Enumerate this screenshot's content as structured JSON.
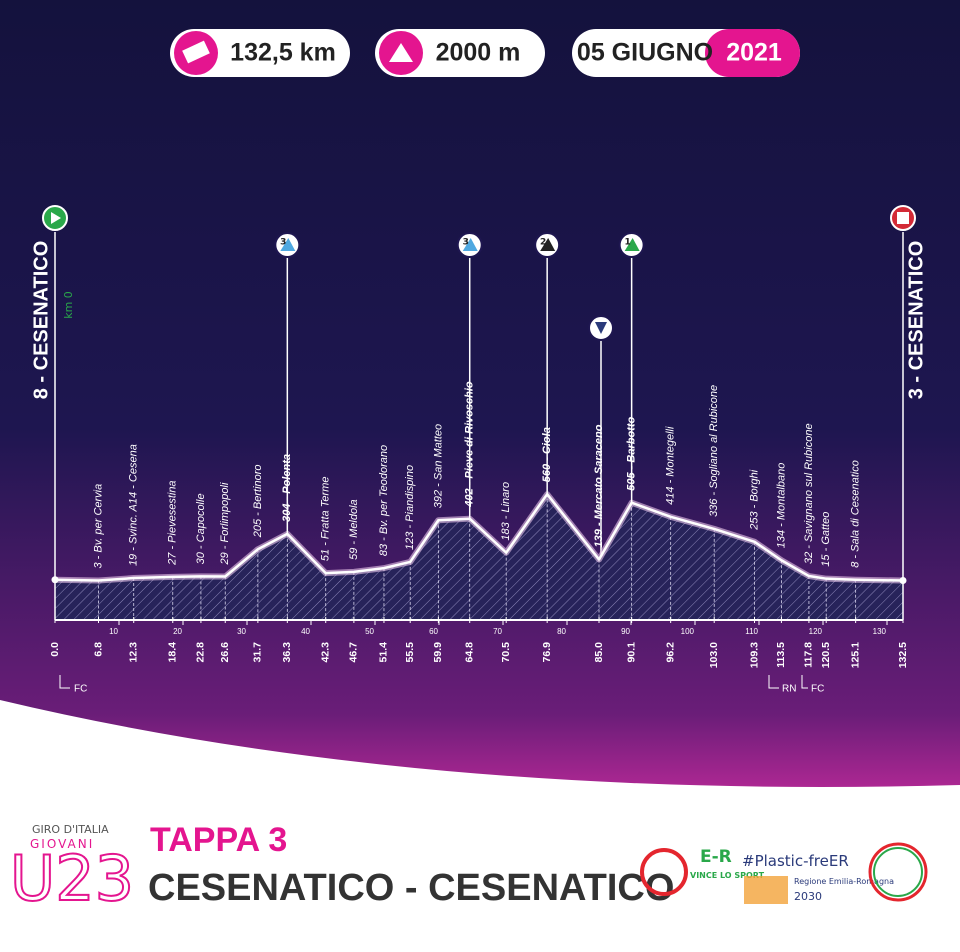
{
  "header": {
    "distance": "132,5 km",
    "elevation": "2000 m",
    "date": "05 GIUGNO",
    "year": "2021"
  },
  "chart_data": {
    "type": "area",
    "x": [
      0,
      6.8,
      12.3,
      18.4,
      22.8,
      26.6,
      31.7,
      36.3,
      42.3,
      46.7,
      51.4,
      55.5,
      59.9,
      64.8,
      70.5,
      76.9,
      85.0,
      90.1,
      96.2,
      103.0,
      109.3,
      113.5,
      117.8,
      120.5,
      125.1,
      132.5
    ],
    "values": [
      8,
      3,
      19,
      27,
      30,
      29,
      205,
      304,
      51,
      59,
      83,
      123,
      392,
      402,
      183,
      560,
      139,
      505,
      414,
      336,
      253,
      134,
      32,
      15,
      8,
      3
    ],
    "labels": [
      "8 - CESENATICO",
      "3 - Bv. per Cervia",
      "19 - Svinc. A14 - Cesena",
      "27 - Pievesestina",
      "30 - Capocolle",
      "29 - Forlimpopoli",
      "205 - Bertinoro",
      "304 - Polenta",
      "51 - Fratta Terme",
      "59 - Meldola",
      "83 - Bv. per Teodorano",
      "123 - Piandispino",
      "392 - San Matteo",
      "402 - Pieve di Rivoschio",
      "183 - Linaro",
      "560 - Ciola",
      "139 - Mercato Saraceno",
      "505 - Barbotto",
      "414 - Montegelli",
      "336 - Sogliano al Rubicone",
      "253 - Borghi",
      "134 - Montalbano",
      "32 - Savignano sul Rubicone",
      "15 - Gatteo",
      "8 - Sala di Cesenatico",
      "3 - CESENATICO"
    ],
    "xlim": [
      0,
      132.5
    ],
    "xticks": [
      {
        "value": 0,
        "label": "0.0"
      },
      6.8,
      12.3,
      18.4,
      22.8,
      26.6,
      31.7,
      36.3,
      42.3,
      46.7,
      51.4,
      55.5,
      59.9,
      64.8,
      70.5,
      76.9,
      {
        "value": 85,
        "label": "85.0"
      },
      90.1,
      96.2,
      {
        "value": 103,
        "label": "103.0"
      },
      109.3,
      113.5,
      117.8,
      120.5,
      125.1,
      132.5
    ],
    "xminorticks": [
      10,
      20,
      30,
      40,
      50,
      60,
      70,
      80,
      90,
      100,
      110,
      120,
      130
    ],
    "start_note": "km 0",
    "climbs": [
      {
        "km": 36.3,
        "category": "3"
      },
      {
        "km": 64.8,
        "category": "3"
      },
      {
        "km": 76.9,
        "category": "2"
      },
      {
        "km": 90.1,
        "category": "1"
      }
    ],
    "color": "#ffffff"
  },
  "provinces": [
    "FC",
    "RN",
    "FC"
  ],
  "stage": {
    "number": "TAPPA 3",
    "route": "CESENATICO - CESENATICO"
  },
  "logos": {
    "giro": "GIRO D'ITALIA",
    "giovani": "GIOVANI",
    "u23": "U23",
    "er": "E-R",
    "er_sub": "VINCE LO SPORT",
    "plastic": "#Plastic-freER",
    "region": "Regione Emilia-Romagna",
    "year": "2030"
  }
}
